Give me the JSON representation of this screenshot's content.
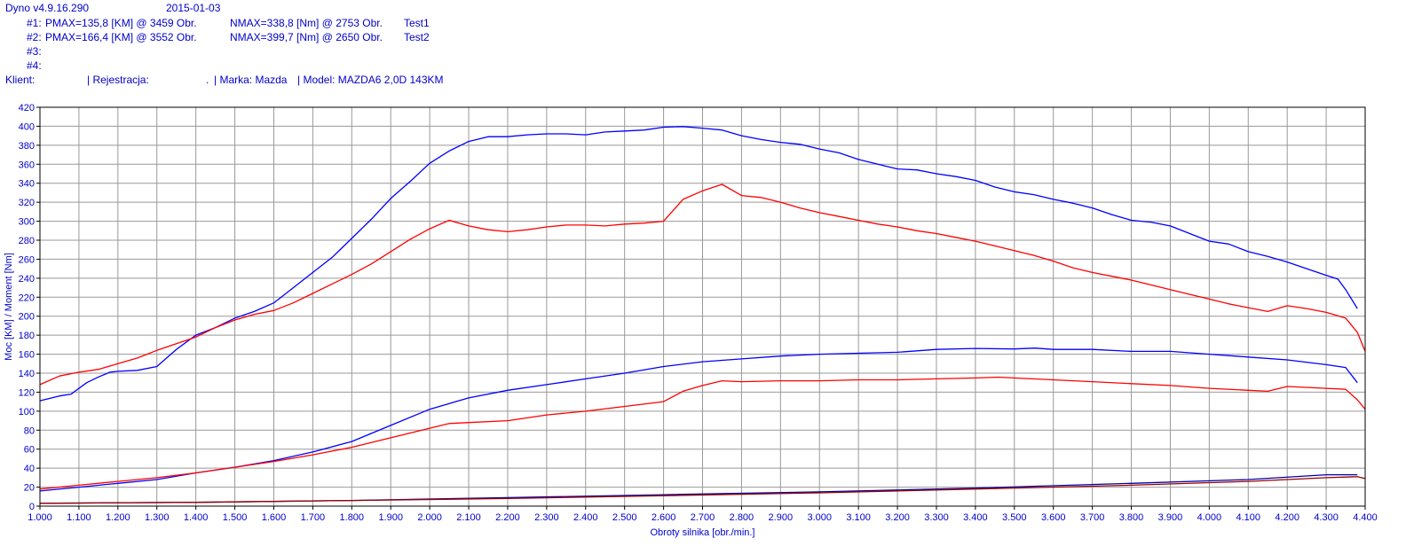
{
  "header": {
    "app_version": "Dyno v4.9.16.290",
    "date": "2015-01-03",
    "runs": [
      {
        "id": "#1:",
        "pmax": "PMAX=135,8 [KM] @ 3459 Obr.",
        "nmax": "NMAX=338,8 [Nm] @ 2753 Obr.",
        "name": "Test1"
      },
      {
        "id": "#2:",
        "pmax": "PMAX=166,4 [KM] @ 3552 Obr.",
        "nmax": "NMAX=399,7 [Nm] @ 2650 Obr.",
        "name": "Test2"
      },
      {
        "id": "#3:",
        "pmax": "",
        "nmax": "",
        "name": ""
      },
      {
        "id": "#4:",
        "pmax": "",
        "nmax": "",
        "name": ""
      }
    ],
    "client_line": {
      "klient": "Klient:",
      "rejestracja": "| Rejestracja:",
      "dot": ".",
      "marka": "| Marka: Mazda",
      "model": "| Model: MAZDA6 2,0D 143KM"
    }
  },
  "colors": {
    "test1": "#ff0000",
    "test2": "#0000ff",
    "loss1": "#990000",
    "loss2": "#0000aa",
    "grid": "#999999",
    "text": "#0000cc"
  },
  "chart_data": {
    "type": "line",
    "xlabel": "Obroty silnika [obr./min.]",
    "ylabel": "Moc [KM] / Moment [Nm]",
    "xlim": [
      1000,
      4400
    ],
    "ylim": [
      0,
      420
    ],
    "x_ticks": [
      "1.000",
      "1.100",
      "1.200",
      "1.300",
      "1.400",
      "1.500",
      "1.600",
      "1.700",
      "1.800",
      "1.900",
      "2.000",
      "2.100",
      "2.200",
      "2.300",
      "2.400",
      "2.500",
      "2.600",
      "2.700",
      "2.800",
      "2.900",
      "3.000",
      "3.100",
      "3.200",
      "3.300",
      "3.400",
      "3.500",
      "3.600",
      "3.700",
      "3.800",
      "3.900",
      "4.000",
      "4.100",
      "4.200",
      "4.300",
      "4.400"
    ],
    "y_ticks": [
      "0",
      "20",
      "40",
      "60",
      "80",
      "100",
      "120",
      "140",
      "160",
      "180",
      "200",
      "220",
      "240",
      "260",
      "280",
      "300",
      "320",
      "340",
      "360",
      "380",
      "400",
      "420"
    ],
    "grid": true,
    "series": [
      {
        "key": "torque2",
        "color": "#0000ff",
        "points": [
          [
            1000,
            111
          ],
          [
            1050,
            116
          ],
          [
            1080,
            118
          ],
          [
            1120,
            130
          ],
          [
            1150,
            136
          ],
          [
            1180,
            141
          ],
          [
            1200,
            142
          ],
          [
            1250,
            143
          ],
          [
            1300,
            147
          ],
          [
            1350,
            165
          ],
          [
            1400,
            180
          ],
          [
            1450,
            188
          ],
          [
            1500,
            198
          ],
          [
            1550,
            205
          ],
          [
            1600,
            214
          ],
          [
            1650,
            230
          ],
          [
            1700,
            246
          ],
          [
            1750,
            262
          ],
          [
            1800,
            282
          ],
          [
            1850,
            302
          ],
          [
            1900,
            324
          ],
          [
            1950,
            342
          ],
          [
            2000,
            361
          ],
          [
            2050,
            374
          ],
          [
            2100,
            384
          ],
          [
            2150,
            389
          ],
          [
            2200,
            389
          ],
          [
            2250,
            391
          ],
          [
            2300,
            392
          ],
          [
            2350,
            392
          ],
          [
            2400,
            391
          ],
          [
            2450,
            394
          ],
          [
            2500,
            395
          ],
          [
            2550,
            396
          ],
          [
            2600,
            399
          ],
          [
            2650,
            399.7
          ],
          [
            2700,
            398
          ],
          [
            2750,
            396
          ],
          [
            2800,
            390
          ],
          [
            2850,
            386
          ],
          [
            2900,
            383
          ],
          [
            2950,
            381
          ],
          [
            3000,
            376
          ],
          [
            3050,
            372
          ],
          [
            3100,
            365
          ],
          [
            3150,
            360
          ],
          [
            3200,
            355
          ],
          [
            3250,
            354
          ],
          [
            3300,
            350
          ],
          [
            3350,
            347
          ],
          [
            3400,
            343
          ],
          [
            3450,
            336
          ],
          [
            3500,
            331
          ],
          [
            3550,
            328
          ],
          [
            3600,
            323
          ],
          [
            3650,
            319
          ],
          [
            3700,
            314
          ],
          [
            3750,
            307
          ],
          [
            3800,
            301
          ],
          [
            3850,
            299
          ],
          [
            3900,
            295
          ],
          [
            3950,
            287
          ],
          [
            4000,
            279
          ],
          [
            4050,
            276
          ],
          [
            4100,
            268
          ],
          [
            4150,
            263
          ],
          [
            4200,
            257
          ],
          [
            4250,
            250
          ],
          [
            4300,
            243
          ],
          [
            4330,
            239
          ],
          [
            4350,
            228
          ],
          [
            4380,
            208
          ]
        ]
      },
      {
        "key": "torque1",
        "color": "#ff0000",
        "points": [
          [
            1000,
            128
          ],
          [
            1050,
            137
          ],
          [
            1100,
            141
          ],
          [
            1150,
            144
          ],
          [
            1200,
            150
          ],
          [
            1250,
            156
          ],
          [
            1300,
            164
          ],
          [
            1350,
            171
          ],
          [
            1400,
            178
          ],
          [
            1450,
            188
          ],
          [
            1500,
            196
          ],
          [
            1550,
            202
          ],
          [
            1600,
            206
          ],
          [
            1650,
            214
          ],
          [
            1700,
            224
          ],
          [
            1750,
            234
          ],
          [
            1800,
            244
          ],
          [
            1850,
            255
          ],
          [
            1900,
            268
          ],
          [
            1950,
            281
          ],
          [
            2000,
            292
          ],
          [
            2050,
            301
          ],
          [
            2100,
            295
          ],
          [
            2150,
            291
          ],
          [
            2200,
            289
          ],
          [
            2250,
            291
          ],
          [
            2300,
            294
          ],
          [
            2350,
            296
          ],
          [
            2400,
            296
          ],
          [
            2450,
            295
          ],
          [
            2500,
            297
          ],
          [
            2550,
            298
          ],
          [
            2600,
            300
          ],
          [
            2650,
            323
          ],
          [
            2700,
            332
          ],
          [
            2750,
            338.8
          ],
          [
            2800,
            327
          ],
          [
            2850,
            325
          ],
          [
            2900,
            320
          ],
          [
            2950,
            314
          ],
          [
            3000,
            309
          ],
          [
            3050,
            305
          ],
          [
            3100,
            301
          ],
          [
            3150,
            297
          ],
          [
            3200,
            294
          ],
          [
            3250,
            290
          ],
          [
            3300,
            287
          ],
          [
            3350,
            283
          ],
          [
            3400,
            279
          ],
          [
            3450,
            274
          ],
          [
            3500,
            269
          ],
          [
            3550,
            264
          ],
          [
            3600,
            258
          ],
          [
            3650,
            251
          ],
          [
            3700,
            246
          ],
          [
            3750,
            242
          ],
          [
            3800,
            238
          ],
          [
            3850,
            233
          ],
          [
            3900,
            228
          ],
          [
            3950,
            223
          ],
          [
            4000,
            218
          ],
          [
            4050,
            213
          ],
          [
            4100,
            209
          ],
          [
            4150,
            205
          ],
          [
            4200,
            211
          ],
          [
            4250,
            208
          ],
          [
            4300,
            204
          ],
          [
            4350,
            198
          ],
          [
            4380,
            183
          ],
          [
            4400,
            163
          ]
        ]
      },
      {
        "key": "power2",
        "color": "#0000ff",
        "points": [
          [
            1000,
            16
          ],
          [
            1100,
            20
          ],
          [
            1200,
            24
          ],
          [
            1300,
            28
          ],
          [
            1400,
            35
          ],
          [
            1500,
            41
          ],
          [
            1600,
            48
          ],
          [
            1700,
            57
          ],
          [
            1800,
            68
          ],
          [
            1900,
            85
          ],
          [
            2000,
            102
          ],
          [
            2100,
            114
          ],
          [
            2200,
            122
          ],
          [
            2300,
            128
          ],
          [
            2400,
            134
          ],
          [
            2500,
            140
          ],
          [
            2600,
            147
          ],
          [
            2700,
            152
          ],
          [
            2800,
            155
          ],
          [
            2900,
            158
          ],
          [
            3000,
            160
          ],
          [
            3100,
            161
          ],
          [
            3200,
            162
          ],
          [
            3300,
            165
          ],
          [
            3400,
            166
          ],
          [
            3500,
            165.5
          ],
          [
            3552,
            166.4
          ],
          [
            3600,
            165
          ],
          [
            3700,
            165
          ],
          [
            3800,
            163
          ],
          [
            3900,
            163
          ],
          [
            4000,
            160
          ],
          [
            4100,
            157
          ],
          [
            4200,
            154
          ],
          [
            4300,
            149
          ],
          [
            4350,
            146
          ],
          [
            4380,
            130
          ]
        ]
      },
      {
        "key": "power1",
        "color": "#ff0000",
        "points": [
          [
            1000,
            18
          ],
          [
            1100,
            22
          ],
          [
            1200,
            26
          ],
          [
            1300,
            30
          ],
          [
            1400,
            35
          ],
          [
            1500,
            41
          ],
          [
            1600,
            47
          ],
          [
            1700,
            54
          ],
          [
            1800,
            62
          ],
          [
            1900,
            72
          ],
          [
            2000,
            82
          ],
          [
            2050,
            87
          ],
          [
            2100,
            88
          ],
          [
            2200,
            90
          ],
          [
            2300,
            96
          ],
          [
            2400,
            100
          ],
          [
            2500,
            105
          ],
          [
            2600,
            110
          ],
          [
            2650,
            121
          ],
          [
            2700,
            127
          ],
          [
            2750,
            132
          ],
          [
            2800,
            131
          ],
          [
            2900,
            132
          ],
          [
            3000,
            132
          ],
          [
            3100,
            133
          ],
          [
            3200,
            133
          ],
          [
            3300,
            134
          ],
          [
            3400,
            135
          ],
          [
            3459,
            135.8
          ],
          [
            3500,
            135
          ],
          [
            3600,
            133
          ],
          [
            3700,
            131
          ],
          [
            3800,
            129
          ],
          [
            3900,
            127
          ],
          [
            4000,
            124
          ],
          [
            4100,
            122
          ],
          [
            4150,
            121
          ],
          [
            4200,
            126
          ],
          [
            4300,
            124
          ],
          [
            4350,
            123
          ],
          [
            4380,
            112
          ],
          [
            4400,
            102
          ]
        ]
      },
      {
        "key": "loss2",
        "color": "#0000aa",
        "points": [
          [
            1000,
            3
          ],
          [
            1400,
            4
          ],
          [
            1800,
            6
          ],
          [
            2200,
            9
          ],
          [
            2600,
            12
          ],
          [
            3000,
            15
          ],
          [
            3400,
            19
          ],
          [
            3800,
            24
          ],
          [
            4100,
            28
          ],
          [
            4300,
            33
          ],
          [
            4380,
            33
          ]
        ]
      },
      {
        "key": "loss1",
        "color": "#990000",
        "points": [
          [
            1000,
            3
          ],
          [
            1400,
            4
          ],
          [
            1800,
            6
          ],
          [
            2200,
            8
          ],
          [
            2600,
            11
          ],
          [
            3000,
            14
          ],
          [
            3400,
            18
          ],
          [
            3800,
            22
          ],
          [
            4100,
            26
          ],
          [
            4300,
            30
          ],
          [
            4380,
            31
          ],
          [
            4400,
            29
          ]
        ]
      }
    ]
  }
}
